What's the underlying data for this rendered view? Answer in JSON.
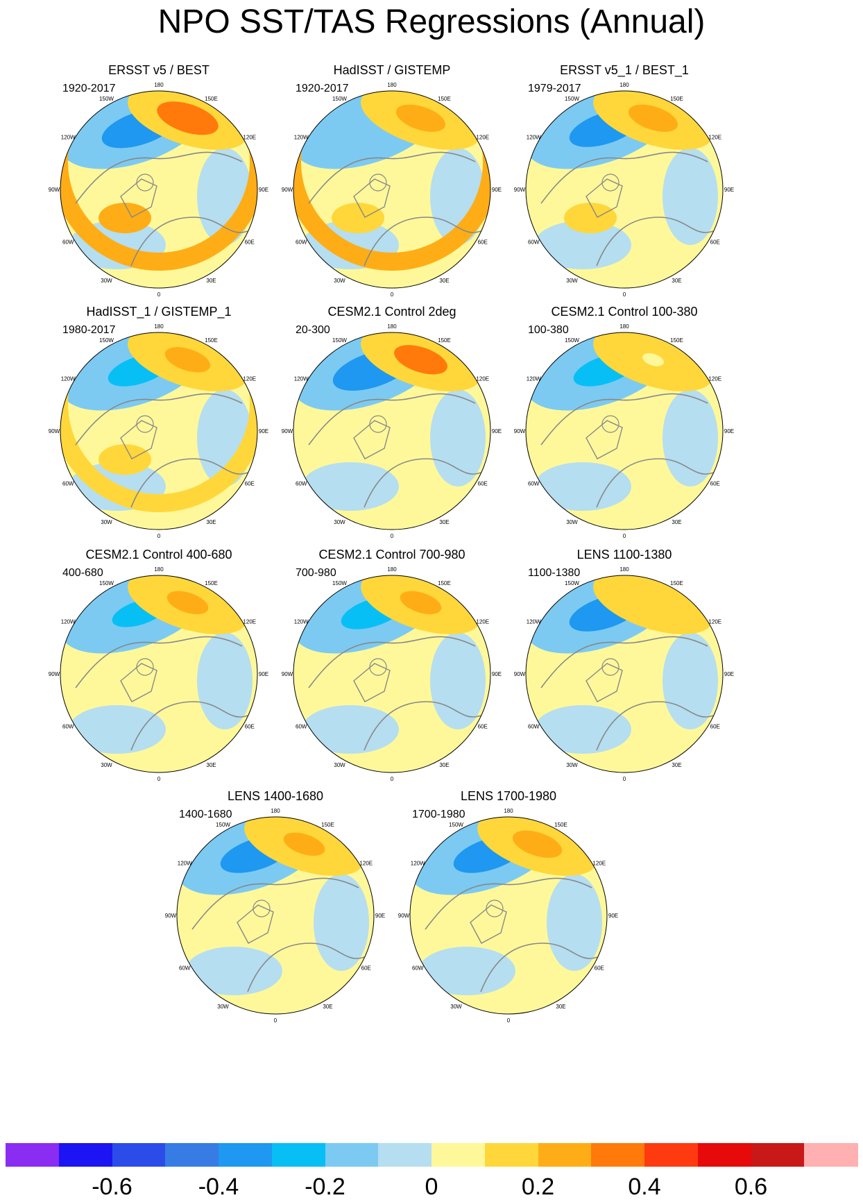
{
  "title": "NPO SST/TAS Regressions (Annual)",
  "lon_labels": [
    "180",
    "150E",
    "120E",
    "90E",
    "60E",
    "30E",
    "0",
    "30W",
    "60W",
    "90W",
    "120W",
    "150W"
  ],
  "colors": {
    "scale": [
      "#8b2cf2",
      "#1c14f2",
      "#2c4cea",
      "#377ce4",
      "#1e98f0",
      "#07bff5",
      "#7ccaf2",
      "#b5def0",
      "#fff89a",
      "#ffd73a",
      "#ffad16",
      "#ff7a0a",
      "#ff3a10",
      "#e60a0a",
      "#c81818",
      "#ffb0b0"
    ],
    "land_outline": "#888888"
  },
  "panels": [
    {
      "title": "ERSST v5 / BEST",
      "years": "1920-2017",
      "pattern": {
        "neg": 0.6,
        "pos": 0.6,
        "arc": 0.55,
        "atl": 0.45
      }
    },
    {
      "title": "HadISST / GISTEMP",
      "years": "1920-2017",
      "pattern": {
        "neg": 0.2,
        "pos": 0.45,
        "arc": 0.5,
        "atl": 0.4
      }
    },
    {
      "title": "ERSST v5_1 / BEST_1",
      "years": "1979-2017",
      "pattern": {
        "neg": 0.55,
        "pos": 0.45,
        "arc": 0.1,
        "atl": 0.35
      }
    },
    {
      "title": "HadISST_1 / GISTEMP_1",
      "years": "1980-2017",
      "pattern": {
        "neg": 0.45,
        "pos": 0.4,
        "arc": 0.35,
        "atl": 0.3
      }
    },
    {
      "title": "CESM2.1 Control 2deg",
      "years": "20-300",
      "pattern": {
        "neg": 0.65,
        "pos": 0.5,
        "arc": 0.0,
        "atl": 0.0
      }
    },
    {
      "title": "CESM2.1 Control 100-380",
      "years": "100-380",
      "pattern": {
        "neg": 0.45,
        "pos": 0.1,
        "arc": 0.0,
        "atl": 0.0
      }
    },
    {
      "title": "CESM2.1 Control 400-680",
      "years": "400-680",
      "pattern": {
        "neg": 0.35,
        "pos": 0.35,
        "arc": 0.0,
        "atl": 0.0
      }
    },
    {
      "title": "CESM2.1 Control 700-980",
      "years": "700-980",
      "pattern": {
        "neg": 0.45,
        "pos": 0.35,
        "arc": 0.0,
        "atl": 0.0
      }
    },
    {
      "title": "LENS 1100-1380",
      "years": "1100-1380",
      "pattern": {
        "neg": 0.55,
        "pos": 0.3,
        "arc": 0.0,
        "atl": 0.0
      }
    },
    {
      "title": "LENS 1400-1680",
      "years": "1400-1680",
      "pattern": {
        "neg": 0.55,
        "pos": 0.35,
        "arc": 0.0,
        "atl": 0.0
      }
    },
    {
      "title": "LENS 1700-1980",
      "years": "1700-1980",
      "pattern": {
        "neg": 0.55,
        "pos": 0.45,
        "arc": 0.0,
        "atl": 0.0
      }
    }
  ],
  "colorbar": {
    "levels": [
      -0.7,
      -0.6,
      -0.5,
      -0.4,
      -0.3,
      -0.2,
      -0.1,
      0,
      0.1,
      0.2,
      0.3,
      0.4,
      0.5,
      0.6,
      0.7
    ],
    "tick_labels": [
      "-0.6",
      "-0.4",
      "-0.2",
      "0",
      "0.2",
      "0.4",
      "0.6"
    ]
  }
}
